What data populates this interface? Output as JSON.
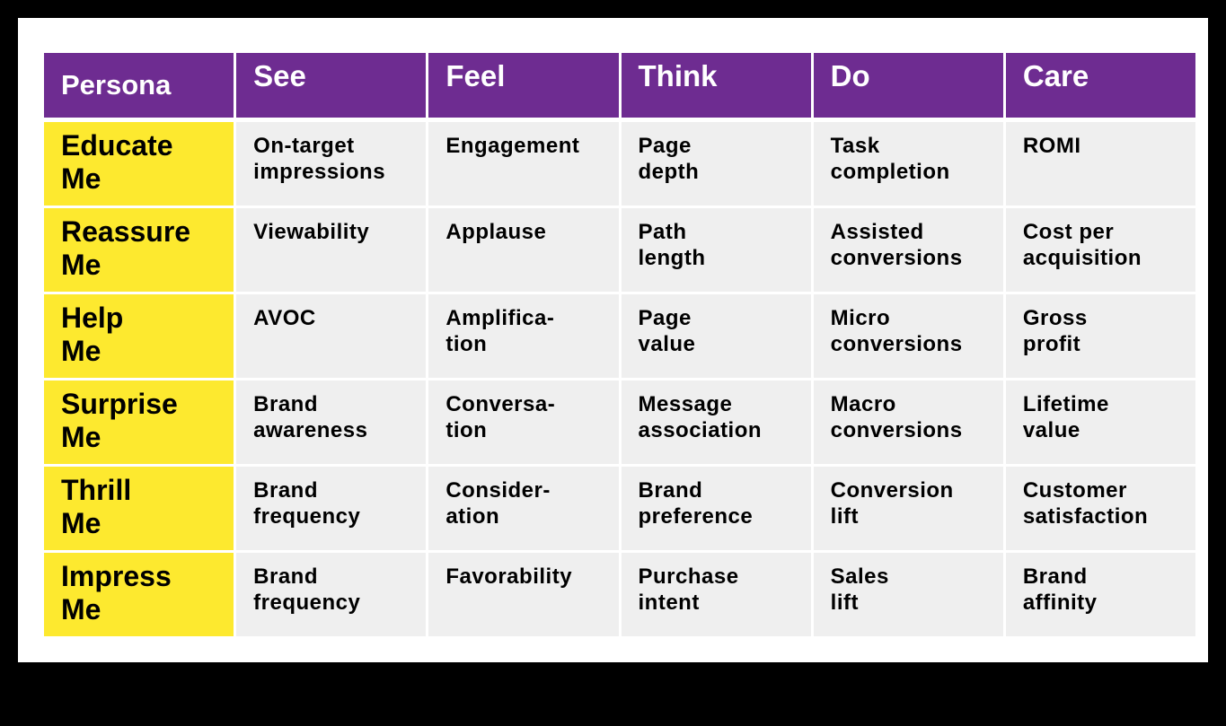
{
  "colors": {
    "header_bg": "#6e2c91",
    "persona_bg": "#fde92f",
    "cell_bg": "#efefef"
  },
  "headers": [
    "Persona",
    "See",
    "Feel",
    "Think",
    "Do",
    "Care"
  ],
  "rows": [
    {
      "persona": "Educate\nMe",
      "cells": [
        "On-target\nimpressions",
        "Engagement",
        "Page\ndepth",
        "Task\ncompletion",
        "ROMI"
      ]
    },
    {
      "persona": "Reassure\nMe",
      "cells": [
        "Viewability",
        "Applause",
        "Path\nlength",
        "Assisted\nconversions",
        "Cost per\nacquisition"
      ]
    },
    {
      "persona": "Help\nMe",
      "cells": [
        "AVOC",
        "Amplifica-\ntion",
        "Page\nvalue",
        "Micro\nconversions",
        "Gross\nprofit"
      ]
    },
    {
      "persona": "Surprise\nMe",
      "cells": [
        "Brand\nawareness",
        "Conversa-\ntion",
        "Message\nassociation",
        "Macro\nconversions",
        "Lifetime\nvalue"
      ]
    },
    {
      "persona": "Thrill\nMe",
      "cells": [
        "Brand\nfrequency",
        "Consider-\nation",
        "Brand\npreference",
        "Conversion\nlift",
        "Customer\nsatisfaction"
      ]
    },
    {
      "persona": "Impress\nMe",
      "cells": [
        "Brand\nfrequency",
        "Favorability",
        "Purchase\nintent",
        "Sales\nlift",
        "Brand\naffinity"
      ]
    }
  ]
}
